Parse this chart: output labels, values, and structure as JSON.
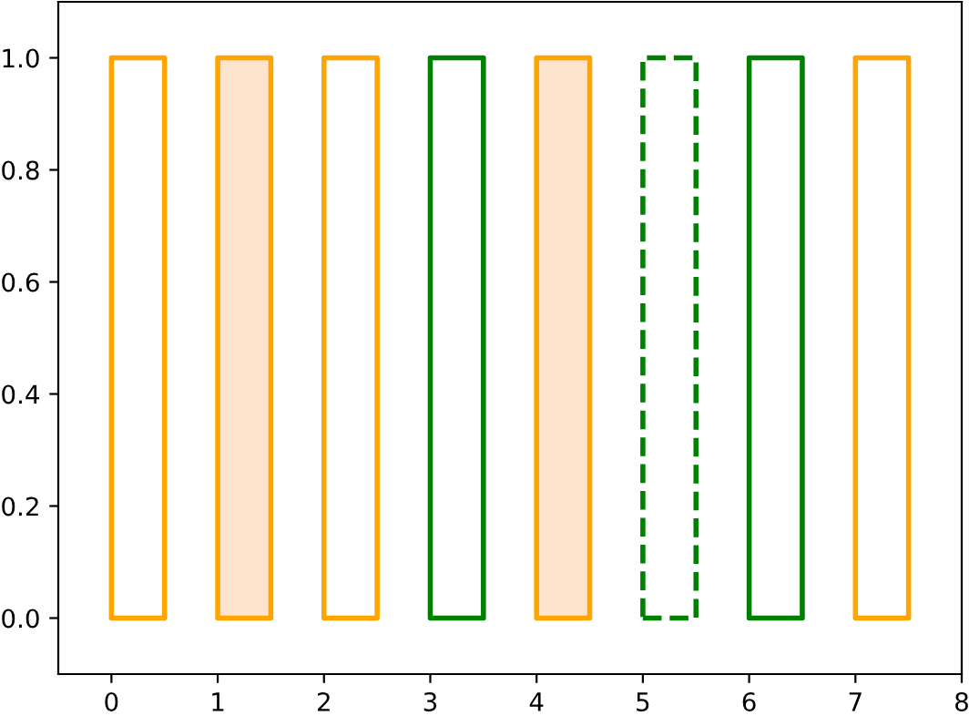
{
  "chart_data": {
    "type": "bar",
    "xlim": [
      -0.5,
      8
    ],
    "ylim": [
      -0.1,
      1.1
    ],
    "xticks": [
      0,
      1,
      2,
      3,
      4,
      5,
      6,
      7,
      8
    ],
    "yticks": [
      {
        "value": 0,
        "label": "0.0"
      },
      {
        "value": 0.2,
        "label": "0.2"
      },
      {
        "value": 0.4,
        "label": "0.4"
      },
      {
        "value": 0.6,
        "label": "0.6"
      },
      {
        "value": 0.8,
        "label": "0.8"
      },
      {
        "value": 1,
        "label": "1.0"
      }
    ],
    "grid": false,
    "legend": false,
    "series": [
      {
        "x": [
          0
        ],
        "values": [
          1
        ],
        "color": "#ffa500"
      },
      {
        "x": [
          1
        ],
        "values": [
          1
        ],
        "color": "#ffa500",
        "colors": [
          "#fee4cc"
        ]
      },
      {
        "x": [
          2
        ],
        "values": [
          1
        ],
        "color": "#ffa500"
      },
      {
        "x": [
          3
        ],
        "values": [
          1
        ],
        "color": "#008000"
      },
      {
        "x": [
          4
        ],
        "values": [
          1
        ],
        "color": "#ffa500",
        "colors": [
          "#fee4cc"
        ]
      },
      {
        "x": [
          5
        ],
        "values": [
          1
        ],
        "color": "#008000",
        "line_style": "dashed"
      },
      {
        "x": [
          6
        ],
        "values": [
          1
        ],
        "color": "#008000"
      },
      {
        "x": [
          7
        ],
        "values": [
          1
        ],
        "color": "#ffa500"
      }
    ]
  }
}
